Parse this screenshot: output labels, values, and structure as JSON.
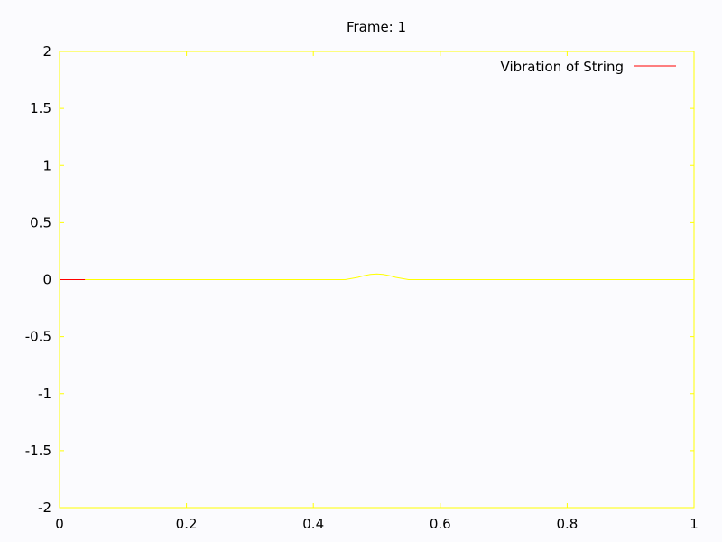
{
  "chart_data": {
    "type": "line",
    "title": "Frame: 1",
    "xlabel": "",
    "ylabel": "",
    "xlim": [
      0,
      1
    ],
    "ylim": [
      -2,
      2
    ],
    "x_ticks": [
      "0",
      "0.2",
      "0.4",
      "0.6",
      "0.8",
      "1"
    ],
    "x_tick_values": [
      0,
      0.2,
      0.4,
      0.6,
      0.8,
      1
    ],
    "y_ticks": [
      "2",
      "1.5",
      "1",
      "0.5",
      "0",
      "-0.5",
      "-1",
      "-1.5",
      "-2"
    ],
    "y_tick_values": [
      2,
      1.5,
      1,
      0.5,
      0,
      -0.5,
      -1,
      -1.5,
      -2
    ],
    "grid": false,
    "legend_position": "top-right",
    "series": [
      {
        "name": "Vibration of String",
        "color": "#ff0000",
        "x": [
          0,
          0.1,
          0.2,
          0.3,
          0.4,
          0.45,
          0.47,
          0.48,
          0.49,
          0.5,
          0.51,
          0.52,
          0.53,
          0.55,
          0.6,
          0.7,
          0.8,
          0.9,
          1
        ],
        "y": [
          0,
          0,
          0,
          0,
          0,
          0,
          0.02,
          0.035,
          0.045,
          0.05,
          0.045,
          0.035,
          0.02,
          0,
          0,
          0,
          0,
          0,
          0
        ]
      }
    ],
    "frame_color": "#ffff00"
  }
}
